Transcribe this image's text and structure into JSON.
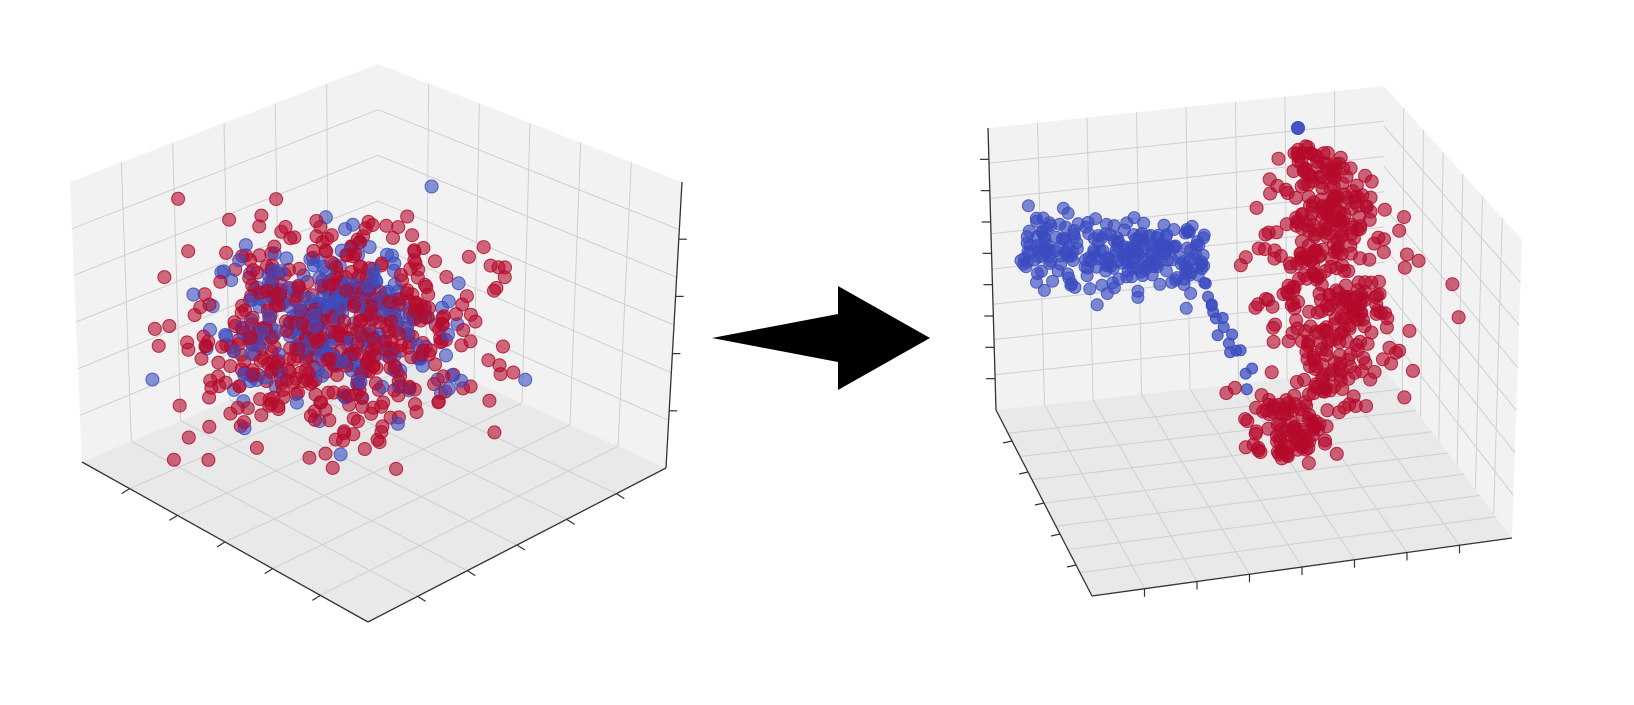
{
  "chart_data": [
    {
      "type": "scatter",
      "subtype": "3d",
      "title": "",
      "xlabel": "",
      "ylabel": "",
      "zlabel": "",
      "grid": true,
      "tick_labels": false,
      "clusters": [
        {
          "color": "#b50a2c",
          "center": [
            0.0,
            0.0,
            0.0
          ],
          "spread": [
            1.0,
            1.0,
            0.75
          ],
          "n": 520
        },
        {
          "color": "#3b4cc0",
          "center": [
            0.0,
            0.0,
            0.05
          ],
          "spread": [
            0.75,
            0.75,
            0.6
          ],
          "n": 260
        }
      ]
    },
    {
      "type": "scatter",
      "subtype": "3d",
      "title": "",
      "xlabel": "",
      "ylabel": "",
      "zlabel": "",
      "grid": true,
      "tick_labels": false,
      "clusters": [
        {
          "color": "#3b4cc0",
          "center": [
            -0.6,
            0.0,
            0.35
          ],
          "spread": [
            0.35,
            0.25,
            0.15
          ],
          "n": 240
        },
        {
          "color": "#b50a2c",
          "center": [
            0.55,
            0.0,
            0.0
          ],
          "spread": [
            0.2,
            0.2,
            0.8
          ],
          "n": 480
        }
      ],
      "outliers": [
        {
          "color": "#3b4cc0",
          "point": [
            0.45,
            0.0,
            1.0
          ]
        }
      ]
    }
  ],
  "arrow": {
    "direction": "right",
    "color": "#000000"
  },
  "colors": {
    "class_a": "#b50a2c",
    "class_b": "#3b4cc0",
    "pane": "#f2f2f2",
    "grid": "#cfcfcf",
    "axis": "#333333"
  }
}
